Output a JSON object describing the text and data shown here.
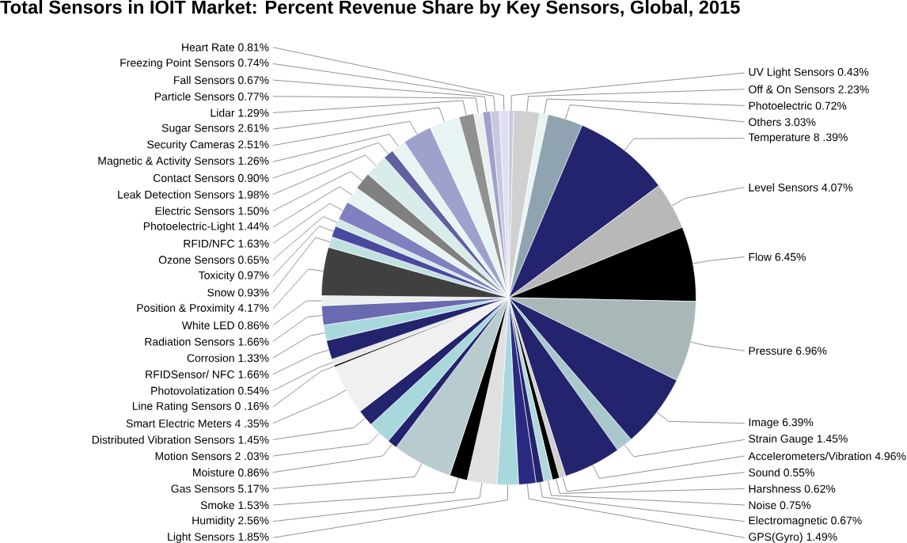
{
  "chart_data": {
    "type": "pie",
    "title": "Total Sensors in IOIT Market: Percent Revenue Share by Key  Sensors, Global, 2015",
    "categories": [
      "UV Light Sensors",
      "Off & On Sensors",
      "Photoelectric",
      "Others",
      "Temperature",
      "Level Sensors",
      "Flow",
      "Pressure",
      "Image",
      "Strain Gauge",
      "Accelerometers/Vibration",
      "Sound",
      "Harshness",
      "Noise",
      "Electromagnetic",
      "GPS(Gyro)",
      "Light Sensors",
      "Humidity",
      "Smoke",
      "Gas Sensors",
      "Moisture",
      "Motion Sensors",
      "Distributed Vibration Sensors",
      "Smart Electric Meters",
      "Line Rating Sensors",
      "Photovolatization",
      "RFIDSensor/ NFC",
      "Corrosion",
      "Radiation Sensors",
      "White LED",
      "Position & Proximity",
      "Snow",
      "Toxicity",
      "Ozone Sensors",
      "RFID/NFC",
      "Photoelectric-Light",
      "Electric Sensors",
      "Leak Detection Sensors",
      "Contact Sensors",
      "Magnetic & Activity Sensors",
      "Security Cameras",
      "Sugar Sensors",
      "Lidar",
      "Particle Sensors",
      "Fall Sensors",
      "Freezing Point Sensors",
      "Heart Rate"
    ],
    "values": [
      0.43,
      2.23,
      0.72,
      3.03,
      8.39,
      4.07,
      6.45,
      6.96,
      6.39,
      1.45,
      4.96,
      0.55,
      0.62,
      0.75,
      0.67,
      1.49,
      1.85,
      2.56,
      1.53,
      5.17,
      0.86,
      2.03,
      1.45,
      4.35,
      0.16,
      0.54,
      1.66,
      1.33,
      1.66,
      0.86,
      4.17,
      0.93,
      0.97,
      0.65,
      1.63,
      1.44,
      1.5,
      1.98,
      0.9,
      1.26,
      2.51,
      2.61,
      1.29,
      0.77,
      0.67,
      0.74,
      0.81
    ],
    "value_labels": [
      "0.43%",
      "2.23%",
      "0.72%",
      "3.03%",
      "8 .39%",
      "4.07%",
      "6.45%",
      "6.96%",
      "6.39%",
      "1.45%",
      "4.96%",
      "0.55%",
      "0.62%",
      "0.75%",
      "0.67%",
      "1.49%",
      "1.85%",
      "2.56%",
      "1.53%",
      "5.17%",
      "0.86%",
      "2 .03%",
      "1.45%",
      "4 .35%",
      "0 .16%",
      "0.54%",
      "1.66%",
      "1.33%",
      "1.66%",
      "0.86%",
      "4.17%",
      "0.93%",
      "0.97%",
      "0.65%",
      "1.63%",
      "1.44%",
      "1.50%",
      "1.98%",
      "0.90%",
      "1.26%",
      "2.51%",
      "2.61%",
      "1.29%",
      "0.77%",
      "0.67%",
      "0.74%",
      "0.81%"
    ],
    "colors": [
      "#c8c8e0",
      "#d0d0d0",
      "#e8f4f4",
      "#8fa4b0",
      "#23236e",
      "#b8b8b8",
      "#000000",
      "#a8b8b8",
      "#23236e",
      "#a8c8cc",
      "#23236e",
      "#d0d0d0",
      "#000000",
      "#b0d8dc",
      "#23236e",
      "#2a2a80",
      "#a8d8dc",
      "#e0e0e0",
      "#000000",
      "#b8ccd0",
      "#23236e",
      "#a8d8dc",
      "#23236e",
      "#f0f0f0",
      "#000000",
      "#e8e8e8",
      "#23236e",
      "#a8d8dc",
      "#6a6ab0",
      "#e8f0f0",
      "#404040",
      "#c0e0e0",
      "#4a4aa0",
      "#d0e8e8",
      "#8080c0",
      "#e8f4f4",
      "#808080",
      "#d8ecec",
      "#6060a0",
      "#e8f4f4",
      "#a0a0cc",
      "#e8f4f4",
      "#909090",
      "#e8f0f0",
      "#a0a0cc",
      "#c8c8e0",
      "#e0e0f0"
    ]
  }
}
